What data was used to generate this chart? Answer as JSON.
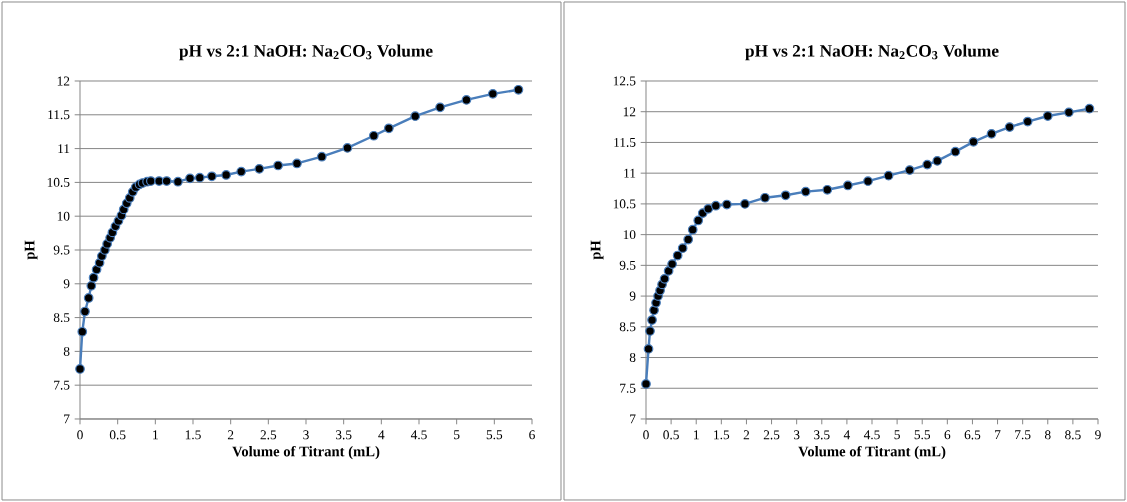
{
  "chart_data": [
    {
      "type": "line",
      "title": "pH vs 2:1 NaOH: Na$_{2}$CO$_{3}$ Volume",
      "xlabel": "Volume of Titrant (mL)",
      "ylabel": "pH",
      "x": [
        0,
        0.03,
        0.066,
        0.115,
        0.15,
        0.18,
        0.22,
        0.26,
        0.29,
        0.33,
        0.36,
        0.4,
        0.43,
        0.47,
        0.51,
        0.55,
        0.58,
        0.62,
        0.66,
        0.7,
        0.74,
        0.79,
        0.83,
        0.89,
        0.94,
        1.05,
        1.15,
        1.3,
        1.46,
        1.59,
        1.75,
        1.94,
        2.14,
        2.38,
        2.63,
        2.88,
        3.21,
        3.55,
        3.9,
        4.1,
        4.45,
        4.78,
        5.13,
        5.48,
        5.82
      ],
      "values": [
        7.74,
        8.29,
        8.59,
        8.79,
        8.97,
        9.09,
        9.21,
        9.31,
        9.41,
        9.5,
        9.59,
        9.68,
        9.76,
        9.85,
        9.93,
        10.01,
        10.1,
        10.19,
        10.27,
        10.36,
        10.43,
        10.47,
        10.49,
        10.51,
        10.52,
        10.52,
        10.52,
        10.51,
        10.56,
        10.57,
        10.59,
        10.61,
        10.66,
        10.7,
        10.75,
        10.78,
        10.88,
        11.01,
        11.19,
        11.3,
        11.48,
        11.61,
        11.72,
        11.81,
        11.87
      ],
      "color": "#4a7ebb",
      "marker": "circle",
      "line_style": "solid",
      "grid": "y",
      "xlim": [
        0,
        6
      ],
      "xticks": [
        0,
        0.5,
        1,
        1.5,
        2,
        2.5,
        3,
        3.5,
        4,
        4.5,
        5,
        5.5,
        6
      ],
      "ylim": [
        7,
        12
      ],
      "yticks": [
        7,
        7.5,
        8,
        8.5,
        9,
        9.5,
        10,
        10.5,
        11,
        11.5,
        12
      ]
    },
    {
      "type": "line",
      "title": "pH vs 2:1 NaOH: Na$_{2}$CO$_{3}$ Volume",
      "xlabel": "Volume of Titrant (mL)",
      "ylabel": "pH",
      "x": [
        0,
        0.05,
        0.08,
        0.12,
        0.16,
        0.2,
        0.24,
        0.28,
        0.32,
        0.37,
        0.45,
        0.52,
        0.63,
        0.73,
        0.84,
        0.93,
        1.04,
        1.13,
        1.24,
        1.39,
        1.61,
        1.97,
        2.37,
        2.78,
        3.18,
        3.61,
        4.02,
        4.42,
        4.83,
        5.25,
        5.6,
        5.8,
        6.16,
        6.52,
        6.88,
        7.24,
        7.6,
        8.0,
        8.42,
        8.83
      ],
      "values": [
        7.57,
        8.14,
        8.43,
        8.61,
        8.77,
        8.89,
        9.0,
        9.09,
        9.19,
        9.28,
        9.41,
        9.52,
        9.66,
        9.78,
        9.92,
        10.08,
        10.23,
        10.35,
        10.42,
        10.47,
        10.49,
        10.5,
        10.6,
        10.64,
        10.7,
        10.73,
        10.8,
        10.87,
        10.96,
        11.05,
        11.14,
        11.2,
        11.35,
        11.51,
        11.64,
        11.75,
        11.84,
        11.93,
        11.99,
        12.05
      ],
      "color": "#4a7ebb",
      "marker": "circle",
      "line_style": "solid",
      "grid": "y",
      "xlim": [
        0,
        9
      ],
      "xticks": [
        0,
        0.5,
        1,
        1.5,
        2,
        2.5,
        3,
        3.5,
        4,
        4.5,
        5,
        5.5,
        6,
        6.5,
        7,
        7.5,
        8,
        8.5,
        9
      ],
      "ylim": [
        7,
        12.5
      ],
      "yticks": [
        7,
        7.5,
        8,
        8.5,
        9,
        9.5,
        10,
        10.5,
        11,
        11.5,
        12,
        12.5
      ]
    }
  ]
}
